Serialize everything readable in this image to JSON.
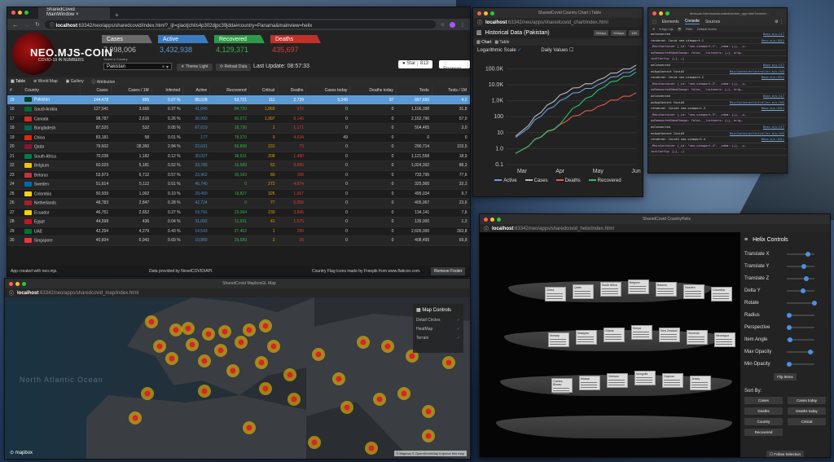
{
  "desktop": {
    "colors": {
      "bg": "#2c4464"
    }
  },
  "main_window": {
    "tab_title": "SharedCovid MainWindow",
    "url_host": "localhost",
    "url_rest": ":63342/neo/apps/sharedcovid/index.html?_ijt=giaotjchtis4p302djpc39jdda#country=Panama&mainview=helix",
    "logo": "NEO.MJS-COIN",
    "logo_sub": "COVID-19 IN NUMBERS",
    "stats": [
      {
        "label": "Cases",
        "value": "7,998,006",
        "color": "#6b6b6b"
      },
      {
        "label": "Active",
        "value": "3,432,938",
        "color": "#3c7bbf"
      },
      {
        "label": "Recovered",
        "value": "4,129,371",
        "color": "#2e9a49"
      },
      {
        "label": "Deaths",
        "value": "435,697",
        "color": "#c0312a"
      }
    ],
    "select_label": "Select a Country",
    "selected_country": "Pakistan",
    "theme_btn": "Theme Light",
    "reload_btn": "Reload Data",
    "last_update": "Last Update: 08:57:33",
    "star_btn": "Star",
    "star_count": "813",
    "sponsor_btn": "Sponsor",
    "nav": [
      "Table",
      "World Map",
      "Gallery",
      "Attribution"
    ],
    "columns": [
      "#",
      "Country",
      "Cases",
      "Cases / 1M",
      "Infected",
      "Active",
      "Recovered",
      "Critical",
      "Deaths",
      "Cases today",
      "Deaths today",
      "Tests",
      "Tests / 1M"
    ],
    "rows": [
      [
        "15",
        "Pakistan",
        "144,478",
        "655",
        "0.07 %",
        "88,028",
        "53,721",
        "111",
        "2,729",
        "5,248",
        "97",
        "897,650",
        "4,0",
        "#01411c"
      ],
      [
        "16",
        "Saudi Arabia",
        "127,541",
        "3,666",
        "0.37 %",
        "41,849",
        "84,720",
        "1,869",
        "972",
        "0",
        "0",
        "1,106,398",
        "31,8",
        "#006c35"
      ],
      [
        "17",
        "Canada",
        "98,787",
        "2,616",
        "0.26 %",
        "30,993",
        "60,072",
        "1,997",
        "8,146",
        "0",
        "0",
        "2,152,790",
        "57,0",
        "#d52b1e"
      ],
      [
        "18",
        "Bangladesh",
        "87,520",
        "532",
        "0.05 %",
        "67,619",
        "18,730",
        "1",
        "1,171",
        "0",
        "0",
        "504,465",
        "3,0",
        "#006a4e"
      ],
      [
        "19",
        "China",
        "83,181",
        "58",
        "0.01 %",
        "177",
        "78,370",
        "0",
        "4,634",
        "49",
        "0",
        "0",
        "0",
        "#de2910"
      ],
      [
        "20",
        "Qatar",
        "79,602",
        "28,350",
        "2.84 %",
        "22,631",
        "56,898",
        "231",
        "73",
        "0",
        "0",
        "290,714",
        "103,5",
        "#8a1538"
      ],
      [
        "21",
        "South Africa",
        "70,038",
        "1,182",
        "0.12 %",
        "30,027",
        "38,531",
        "208",
        "1,480",
        "0",
        "0",
        "1,121,558",
        "18,9",
        "#007a4d"
      ],
      [
        "22",
        "Belgium",
        "60,029",
        "5,181",
        "0.52 %",
        "33,785",
        "16,589",
        "62",
        "9,655",
        "0",
        "0",
        "1,024,392",
        "88,3",
        "#f6c300"
      ],
      [
        "23",
        "Belarus",
        "53,973",
        "5,712",
        "0.57 %",
        "23,962",
        "30,163",
        "80",
        "308",
        "0",
        "0",
        "733,795",
        "77,6",
        "#c8313e"
      ],
      [
        "24",
        "Sweden",
        "51,614",
        "5,112",
        "0.51 %",
        "46,740",
        "0",
        "272",
        "4,874",
        "0",
        "0",
        "325,900",
        "32,2",
        "#006aa7"
      ],
      [
        "25",
        "Colombia",
        "50,939",
        "1,002",
        "0.10 %",
        "29,450",
        "19,827",
        "326",
        "1,667",
        "0",
        "0",
        "495,034",
        "9,7",
        "#fcd116"
      ],
      [
        "26",
        "Netherlands",
        "48,783",
        "2,847",
        "0.28 %",
        "42,724",
        "0",
        "77",
        "6,059",
        "0",
        "0",
        "405,067",
        "23,6",
        "#ae1c28"
      ],
      [
        "27",
        "Ecuador",
        "46,751",
        "2,652",
        "0.27 %",
        "19,791",
        "23,064",
        "230",
        "3,896",
        "0",
        "0",
        "134,141",
        "7,6",
        "#ffd100"
      ],
      [
        "28",
        "Egypt",
        "44,598",
        "436",
        "0.04 %",
        "31,092",
        "11,931",
        "41",
        "1,575",
        "0",
        "0",
        "135,000",
        "1,3",
        "#ce1126"
      ],
      [
        "29",
        "UAE",
        "42,294",
        "4,279",
        "0.43 %",
        "14,543",
        "27,462",
        "1",
        "289",
        "0",
        "0",
        "2,609,000",
        "263,8",
        "#00732f"
      ],
      [
        "30",
        "Singapore",
        "40,604",
        "6,943",
        "0.69 %",
        "10,889",
        "29,589",
        "2",
        "26",
        "0",
        "0",
        "408,495",
        "69,8",
        "#ef3340"
      ]
    ],
    "footer_left": "App created with neo.mjs.",
    "footer_mid": "Data provided by NovelCOVID/API.",
    "footer_right": "Country Flag Icons made by Freepik from www.flaticon.com.",
    "remove_footer": "Remove Footer"
  },
  "map_window": {
    "title": "SharedCovid MapboxGL Map",
    "url_host": "localhost",
    "url_rest": ":63342/neo/apps/sharedcovid_map/index.html",
    "ocean_label": "North Atlantic Ocean",
    "controls_title": "Map Controls",
    "controls": [
      "Detail Circles",
      "HeatMap",
      "Terrain"
    ],
    "mapbox": "mapbox",
    "attribution": "© Mapbox © OpenStreetMap Improve this map"
  },
  "chart_window": {
    "title": "SharedCovid Country Chart | Table",
    "url_host": "localhost",
    "url_rest": ":63342/neo/apps/sharedcovid_chart/index.html",
    "heading": "Historical Data (Pakistan)",
    "buttons": [
      "30days",
      "60days",
      "180"
    ],
    "tabs": [
      "Chart",
      "Table"
    ],
    "log_scale": "Logarithmic Scale",
    "daily_values": "Daily Values",
    "colors": {
      "active": "#6d9be0",
      "cases": "#b5b5b5",
      "deaths": "#e05a4b",
      "recovered": "#2fbf71"
    }
  },
  "chart_data": {
    "type": "line",
    "title": "Historical Data (Pakistan)",
    "yscale": "log",
    "x": [
      "Mar",
      "Apr",
      "May",
      "Jun"
    ],
    "yticks": [
      "100.0K",
      "10.0K",
      "1.0K",
      "100",
      "10",
      "1.0",
      "0.1"
    ],
    "series": [
      {
        "name": "Active",
        "values": [
          5,
          900,
          9000,
          88000
        ]
      },
      {
        "name": "Cases",
        "values": [
          6,
          2000,
          17000,
          144478
        ]
      },
      {
        "name": "Deaths",
        "values": [
          0.5,
          28,
          380,
          2729
        ]
      },
      {
        "name": "Recovered",
        "values": [
          0.5,
          30,
          4000,
          53721
        ]
      }
    ]
  },
  "devtools_window": {
    "title": "devtools://devtools/bundled/worker_app.html?remote...",
    "tabs": [
      "Elements",
      "Console",
      "Sources"
    ],
    "context": "App.mjs",
    "filter": "Filter",
    "level": "Default levels",
    "logs": [
      {
        "text": "onConnected",
        "src": "Base.mjs:117"
      },
      {
        "text": "rendered: Covid neo-viewport-1",
        "src": "Base.mjs:1011"
      },
      {
        "text": "_MainContainer {_id: \"neo-viewport-1\", _vdom: {…}, _v…",
        "src": ""
      },
      {
        "text": "asRemountedVdomChange: false, _listeners: {…}, orig…",
        "src": ""
      },
      {
        "text": "inalConfig: {…}, …}",
        "src": ""
      },
      {
        "text": "onConnected",
        "src": "Base.mjs:117"
      },
      {
        "text": "onAppConnect Covid2",
        "src": "MainContainerController.mjs:343"
      },
      {
        "text": "rendered: Covid neo-viewport-2",
        "src": "Base.mjs:1011"
      },
      {
        "text": "_MainContainer {_id: \"neo-viewport-2\", _vdom: {…}, _v…",
        "src": ""
      },
      {
        "text": "asRemountedVdomChange: false, _listeners: {…}, orig…",
        "src": ""
      },
      {
        "text": "onConnected",
        "src": "Base.mjs:117"
      },
      {
        "text": "onAppConnect Covid4",
        "src": "MainContainerController.mjs:343"
      },
      {
        "text": "rendered: Covid4 neo-viewport-3",
        "src": "Base.mjs:1011"
      },
      {
        "text": "_MainContainer {_id: \"neo-viewport-3\", _vdom: {…}, _v…",
        "src": ""
      },
      {
        "text": "asRemountedVdomChange: false, _listeners: {…}, orig…",
        "src": ""
      },
      {
        "text": "onConnected",
        "src": "Base.mjs:117"
      },
      {
        "text": "onAppConnect Covid3",
        "src": "MainContainerController.mjs:343"
      },
      {
        "text": "rendered: Covid3 neo-viewport-4",
        "src": "Base.mjs:1011"
      },
      {
        "text": "_MainContainer {_id: \"neo-viewport-4\", _vdom: {…}, _v…",
        "src": ""
      },
      {
        "text": "inalConfig: {…}, …}",
        "src": ""
      }
    ]
  },
  "helix_window": {
    "title": "SharedCovid CountryHelix",
    "url_host": "localhost",
    "url_rest": ":63342/neo/apps/sharedcovid_helix/index.html",
    "controls_title": "Helix Controls",
    "sliders": [
      {
        "label": "Translate X",
        "value": 0.75
      },
      {
        "label": "Translate Y",
        "value": 0.62
      },
      {
        "label": "Translate Z",
        "value": 0.7
      },
      {
        "label": "Delta Y",
        "value": 0.6
      },
      {
        "label": "Rotate",
        "value": 1.0
      },
      {
        "label": "Radius",
        "value": 0.1
      },
      {
        "label": "Perspective",
        "value": 0.1
      },
      {
        "label": "Item Angle",
        "value": 0.12
      },
      {
        "label": "Max Opacity",
        "value": 0.86
      },
      {
        "label": "Min Opacity",
        "value": 0.08
      }
    ],
    "flip_btn": "Flip Items",
    "sort_by": "Sort By:",
    "sort_buttons": [
      "Cases",
      "Cases today",
      "Deaths",
      "Deaths today",
      "Country",
      "Critical",
      "Recovered"
    ],
    "follow_btn": "Follow Selection",
    "cards": [
      "China",
      "Qatar",
      "South Africa",
      "Belgium",
      "Belarus",
      "Sweden",
      "Colombia",
      "Norway",
      "Malaysia",
      "Ghana",
      "Kenya",
      "New Zealand",
      "Slovenia",
      "Nicaragua",
      "Guinea-Bissau",
      "Malawi",
      "Vietnam",
      "Mongolia",
      "Cayman",
      "Jersey"
    ]
  }
}
